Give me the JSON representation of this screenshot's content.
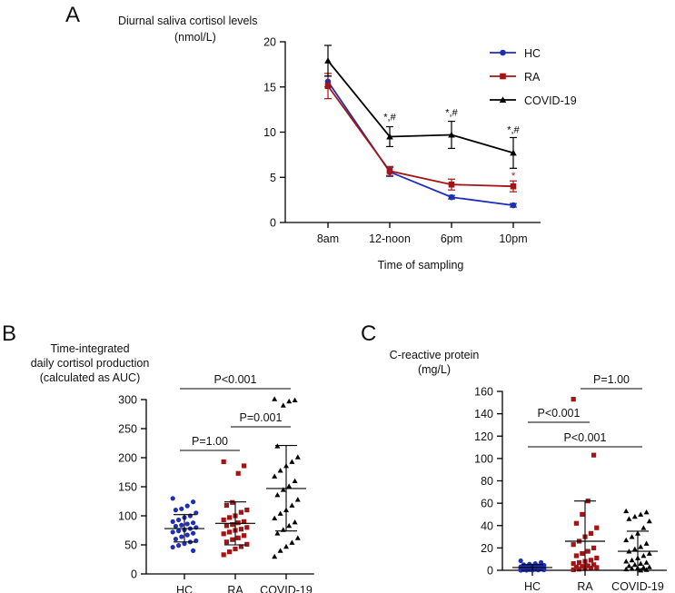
{
  "chart_data": [
    {
      "panel": "A",
      "type": "line",
      "title": [
        "Diurnal saliva cortisol levels",
        "(nmol/L)"
      ],
      "xlabel": "Time of sampling",
      "ylabel": "",
      "categories": [
        "8am",
        "12-noon",
        "6pm",
        "10pm"
      ],
      "ylim": [
        0,
        20
      ],
      "yticks": [
        0,
        5,
        10,
        15,
        20
      ],
      "legend_position": "top-right",
      "series": [
        {
          "name": "HC",
          "color": "#1f2fb5",
          "marker": "circle",
          "values": [
            15.6,
            5.6,
            2.8,
            1.9
          ],
          "errors": [
            0.6,
            0.5,
            0.2,
            0.2
          ]
        },
        {
          "name": "RA",
          "color": "#a31515",
          "marker": "square",
          "values": [
            15.1,
            5.7,
            4.2,
            4.0
          ],
          "errors": [
            1.4,
            0.5,
            0.6,
            0.6
          ]
        },
        {
          "name": "COVID-19",
          "color": "#000000",
          "marker": "triangle",
          "values": [
            17.9,
            9.5,
            9.7,
            7.7
          ],
          "errors": [
            1.7,
            1.1,
            1.5,
            1.7
          ]
        }
      ],
      "annotations": [
        {
          "category": "12-noon",
          "text": "*,#",
          "color": "#000000",
          "y": 11.3
        },
        {
          "category": "6pm",
          "text": "*,#",
          "color": "#000000",
          "y": 11.8
        },
        {
          "category": "10pm",
          "text": "*,#",
          "color": "#000000",
          "y": 9.9
        },
        {
          "category": "10pm",
          "text": "*",
          "color": "#a31515",
          "y": 4.8
        }
      ]
    },
    {
      "panel": "B",
      "type": "scatter",
      "title": [
        "Time-integrated",
        "daily cortisol production",
        "(calculated as AUC)"
      ],
      "xlabel": "",
      "ylabel": "",
      "categories": [
        "HC",
        "RA",
        "COVID-19"
      ],
      "ylim": [
        0,
        300
      ],
      "yticks": [
        0,
        50,
        100,
        150,
        200,
        250,
        300
      ],
      "groups": [
        {
          "name": "HC",
          "color": "#1f2fb5",
          "marker": "circle",
          "mean": 78,
          "sd_low": 55,
          "sd_high": 102,
          "points": [
            130,
            124,
            117,
            112,
            110,
            105,
            100,
            97,
            93,
            90,
            88,
            86,
            84,
            82,
            80,
            78,
            76,
            74,
            72,
            70,
            67,
            64,
            60,
            57,
            55,
            52,
            49,
            46,
            40
          ]
        },
        {
          "name": "RA",
          "color": "#a31515",
          "marker": "square",
          "mean": 87,
          "sd_low": 50,
          "sd_high": 124,
          "points": [
            193,
            186,
            173,
            123,
            118,
            110,
            106,
            100,
            97,
            93,
            90,
            88,
            85,
            83,
            80,
            77,
            75,
            72,
            69,
            66,
            62,
            59,
            55,
            51,
            47,
            43,
            38,
            33
          ]
        },
        {
          "name": "COVID-19",
          "color": "#000000",
          "marker": "triangle",
          "mean": 147,
          "sd_low": 74,
          "sd_high": 221,
          "points": [
            301,
            299,
            297,
            290,
            220,
            201,
            193,
            186,
            178,
            168,
            160,
            151,
            145,
            136,
            128,
            118,
            110,
            104,
            96,
            89,
            83,
            76,
            70,
            62,
            54,
            47,
            40,
            30
          ]
        }
      ],
      "comparisons": [
        {
          "from": "HC",
          "to": "RA",
          "text": "P=1.00"
        },
        {
          "from": "RA",
          "to": "COVID-19",
          "text": "P=0.001"
        },
        {
          "from": "HC",
          "to": "COVID-19",
          "text": "P<0.001"
        }
      ]
    },
    {
      "panel": "C",
      "type": "scatter",
      "title": [
        "C-reactive protein",
        "(mg/L)"
      ],
      "xlabel": "",
      "ylabel": "",
      "categories": [
        "HC",
        "RA",
        "COVID-19"
      ],
      "ylim": [
        0,
        160
      ],
      "yticks": [
        0,
        20,
        40,
        60,
        80,
        100,
        120,
        140,
        160
      ],
      "groups": [
        {
          "name": "HC",
          "color": "#1f2fb5",
          "marker": "circle",
          "mean": 2.5,
          "sd_low": 0,
          "sd_high": 5,
          "points": [
            8.5,
            7,
            6,
            5.5,
            5,
            4.5,
            4,
            3.8,
            3.5,
            3.2,
            3,
            2.8,
            2.5,
            2.2,
            2,
            1.8,
            1.6,
            1.4,
            1.2,
            1,
            0.8,
            0.6,
            0.5,
            0.4,
            0.3,
            0.2,
            0.1,
            0
          ]
        },
        {
          "name": "RA",
          "color": "#a31515",
          "marker": "square",
          "mean": 26,
          "sd_low": 0,
          "sd_high": 62,
          "points": [
            153,
            103,
            62,
            50,
            42,
            38,
            33,
            30,
            26,
            23,
            20,
            17,
            15,
            13,
            11,
            9,
            8,
            7,
            6,
            5,
            4,
            3.5,
            3,
            2.5,
            2,
            1.5,
            1,
            0.5
          ]
        },
        {
          "name": "COVID-19",
          "color": "#000000",
          "marker": "triangle",
          "mean": 17,
          "sd_low": 0,
          "sd_high": 35,
          "points": [
            53,
            52,
            50,
            48,
            46,
            44,
            38,
            33,
            30,
            27,
            24,
            21,
            19,
            17,
            15,
            13,
            11,
            9,
            8,
            7,
            6,
            5,
            4,
            3,
            2.5,
            2,
            1.5,
            1,
            0.5,
            0
          ]
        }
      ],
      "comparisons": [
        {
          "from": "RA",
          "to": "COVID-19",
          "text": "P=1.00"
        },
        {
          "from": "HC",
          "to": "RA",
          "text": "P<0.001"
        },
        {
          "from": "HC",
          "to": "COVID-19",
          "text": "P<0.001"
        }
      ]
    }
  ]
}
